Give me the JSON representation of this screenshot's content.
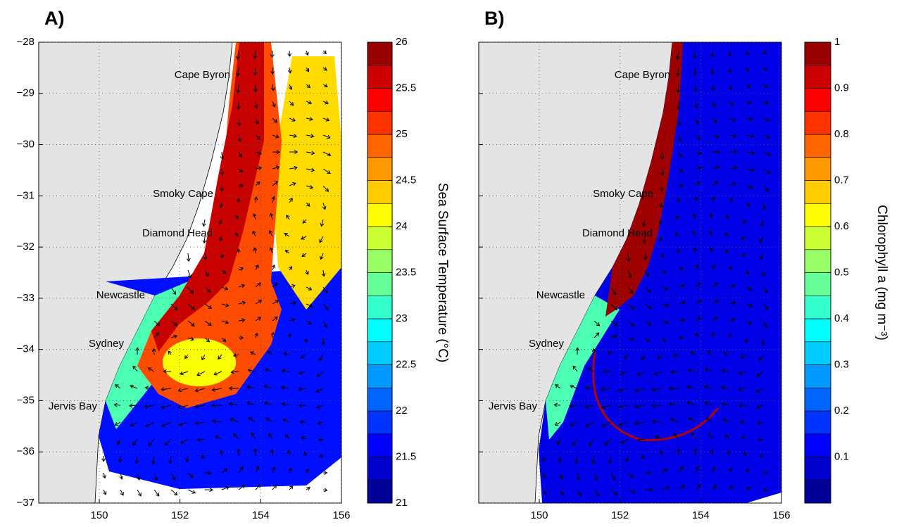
{
  "chart_data": [
    {
      "type": "map",
      "panel_label": "A)",
      "xlim": [
        148.5,
        156
      ],
      "xticks": [
        150,
        152,
        154,
        156
      ],
      "ylim": [
        -37,
        -28
      ],
      "yticks": [
        {
          "value": -28,
          "label": "−28"
        },
        {
          "value": -29,
          "label": "−29"
        },
        {
          "value": -30,
          "label": "−30"
        },
        {
          "value": -31,
          "label": "−31"
        },
        {
          "value": -32,
          "label": "−32"
        },
        {
          "value": -33,
          "label": "−33"
        },
        {
          "value": -34,
          "label": "−34"
        },
        {
          "value": -35,
          "label": "−35"
        },
        {
          "value": -36,
          "label": "−36"
        },
        {
          "value": -37,
          "label": "−37"
        }
      ],
      "grid": true,
      "places": [
        "Cape Byron",
        "Smoky Cape",
        "Diamond Head",
        "Newcastle",
        "Sydney",
        "Jervis Bay"
      ],
      "colorbar": {
        "label": "Sea Surface Temperature (°C)",
        "lim": [
          21,
          26
        ],
        "levels": 20,
        "colormap": "jet",
        "ticks": [
          21,
          21.5,
          22,
          22.5,
          23,
          23.5,
          24,
          24.5,
          25,
          25.5,
          26
        ]
      }
    },
    {
      "type": "map",
      "panel_label": "B)",
      "xlim": [
        148.5,
        156
      ],
      "xticks": [
        150,
        152,
        154,
        156
      ],
      "ylim": [
        -37,
        -28
      ],
      "yticks": [
        -28,
        -29,
        -30,
        -31,
        -32,
        -33,
        -34,
        -35,
        -36,
        -37
      ],
      "grid": true,
      "places": [
        "Cape Byron",
        "Smoky Cape",
        "Diamond Head",
        "Newcastle",
        "Sydney",
        "Jervis Bay"
      ],
      "colorbar": {
        "label": "Chlorophyll a (mg m⁻³)",
        "lim": [
          0,
          1
        ],
        "levels": 20,
        "colormap": "jet",
        "ticks": [
          0.1,
          0.2,
          0.3,
          0.4,
          0.5,
          0.6,
          0.7,
          0.8,
          0.9,
          1
        ]
      }
    }
  ]
}
